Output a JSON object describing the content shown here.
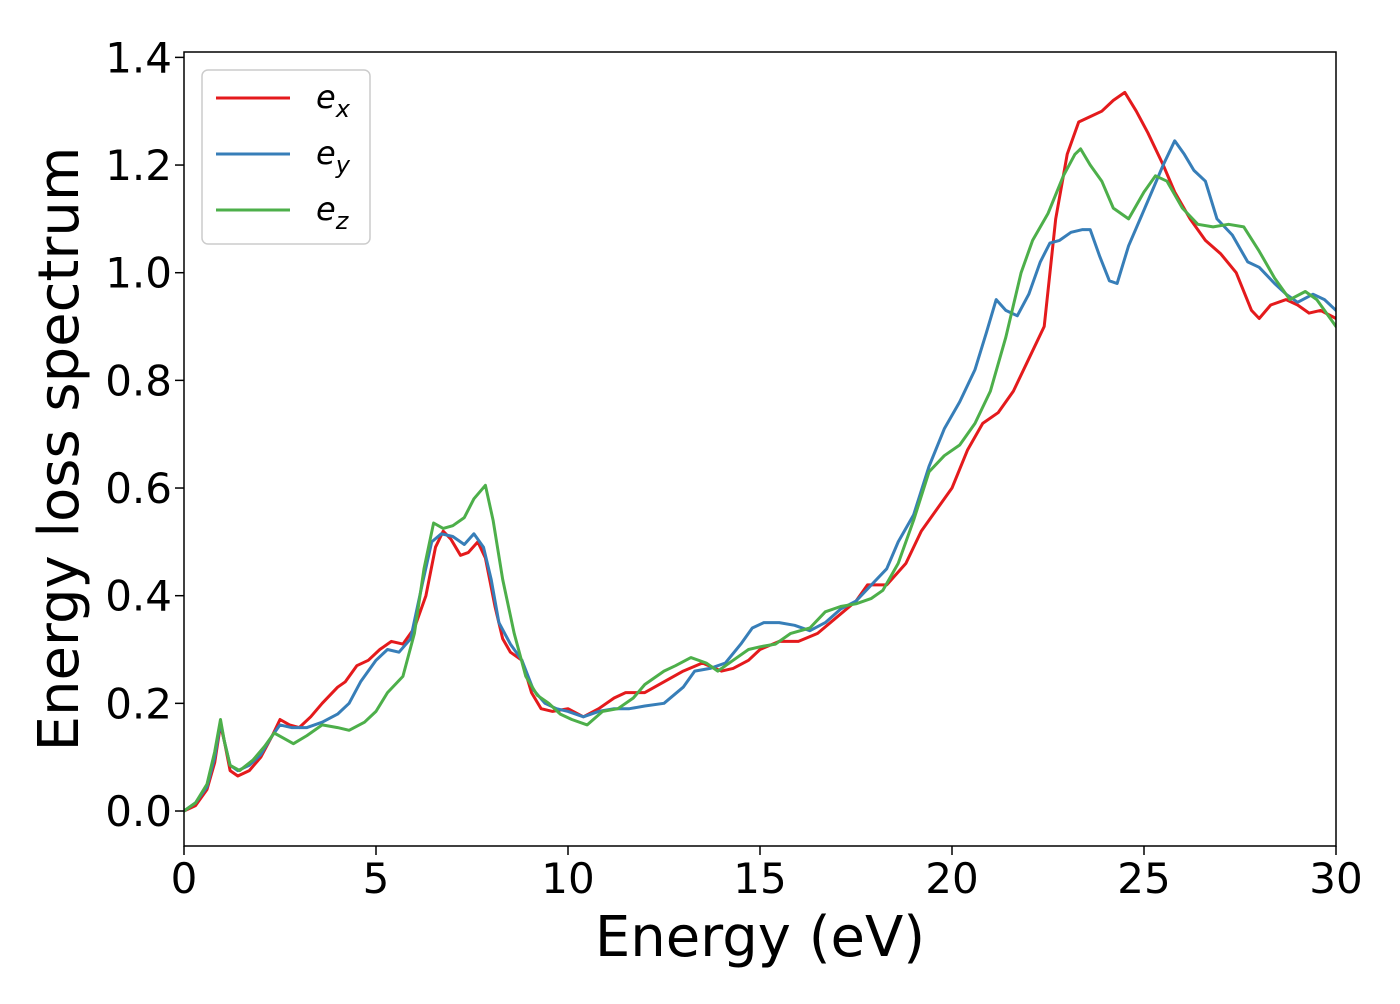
{
  "chart_data": {
    "type": "line",
    "title": "",
    "xlabel": "Energy (eV)",
    "ylabel": "Energy loss spectrum",
    "xlim": [
      0,
      30
    ],
    "ylim": [
      -0.065,
      1.41
    ],
    "xticks": [
      0,
      5,
      10,
      15,
      20,
      25,
      30
    ],
    "xtick_labels": [
      "0",
      "5",
      "10",
      "15",
      "20",
      "25",
      "30"
    ],
    "yticks": [
      0.0,
      0.2,
      0.4,
      0.6,
      0.8,
      1.0,
      1.2,
      1.4
    ],
    "ytick_labels": [
      "0.0",
      "0.2",
      "0.4",
      "0.6",
      "0.8",
      "1.0",
      "1.2",
      "1.4"
    ],
    "grid": false,
    "legend_position": "top-left",
    "series": [
      {
        "name": "e",
        "subscript": "x",
        "color": "#e41a1c",
        "points": [
          [
            0,
            0.0
          ],
          [
            0.3,
            0.01
          ],
          [
            0.6,
            0.04
          ],
          [
            0.8,
            0.09
          ],
          [
            0.95,
            0.16
          ],
          [
            1.05,
            0.13
          ],
          [
            1.2,
            0.075
          ],
          [
            1.4,
            0.065
          ],
          [
            1.7,
            0.075
          ],
          [
            2.0,
            0.1
          ],
          [
            2.3,
            0.14
          ],
          [
            2.5,
            0.17
          ],
          [
            2.75,
            0.16
          ],
          [
            3.0,
            0.155
          ],
          [
            3.3,
            0.175
          ],
          [
            3.6,
            0.2
          ],
          [
            4.0,
            0.23
          ],
          [
            4.2,
            0.24
          ],
          [
            4.5,
            0.27
          ],
          [
            4.8,
            0.28
          ],
          [
            5.1,
            0.3
          ],
          [
            5.4,
            0.315
          ],
          [
            5.7,
            0.31
          ],
          [
            6.0,
            0.34
          ],
          [
            6.3,
            0.4
          ],
          [
            6.55,
            0.49
          ],
          [
            6.75,
            0.52
          ],
          [
            6.95,
            0.505
          ],
          [
            7.2,
            0.475
          ],
          [
            7.4,
            0.48
          ],
          [
            7.65,
            0.5
          ],
          [
            7.85,
            0.47
          ],
          [
            8.1,
            0.38
          ],
          [
            8.3,
            0.32
          ],
          [
            8.5,
            0.295
          ],
          [
            8.8,
            0.28
          ],
          [
            9.05,
            0.22
          ],
          [
            9.3,
            0.19
          ],
          [
            9.6,
            0.185
          ],
          [
            10.0,
            0.19
          ],
          [
            10.4,
            0.175
          ],
          [
            10.8,
            0.19
          ],
          [
            11.2,
            0.21
          ],
          [
            11.5,
            0.22
          ],
          [
            12.0,
            0.22
          ],
          [
            12.5,
            0.24
          ],
          [
            13.0,
            0.26
          ],
          [
            13.5,
            0.275
          ],
          [
            14.0,
            0.26
          ],
          [
            14.3,
            0.265
          ],
          [
            14.7,
            0.28
          ],
          [
            15.0,
            0.3
          ],
          [
            15.5,
            0.315
          ],
          [
            16.0,
            0.315
          ],
          [
            16.5,
            0.33
          ],
          [
            17.0,
            0.36
          ],
          [
            17.5,
            0.39
          ],
          [
            17.8,
            0.42
          ],
          [
            18.0,
            0.42
          ],
          [
            18.3,
            0.42
          ],
          [
            18.8,
            0.46
          ],
          [
            19.2,
            0.52
          ],
          [
            19.6,
            0.56
          ],
          [
            20.0,
            0.6
          ],
          [
            20.4,
            0.67
          ],
          [
            20.8,
            0.72
          ],
          [
            21.2,
            0.74
          ],
          [
            21.6,
            0.78
          ],
          [
            22.0,
            0.84
          ],
          [
            22.4,
            0.9
          ],
          [
            22.7,
            1.1
          ],
          [
            23.0,
            1.22
          ],
          [
            23.3,
            1.28
          ],
          [
            23.6,
            1.29
          ],
          [
            23.9,
            1.3
          ],
          [
            24.2,
            1.32
          ],
          [
            24.5,
            1.335
          ],
          [
            24.8,
            1.3
          ],
          [
            25.1,
            1.26
          ],
          [
            25.5,
            1.2
          ],
          [
            25.8,
            1.15
          ],
          [
            26.2,
            1.1
          ],
          [
            26.6,
            1.06
          ],
          [
            27.0,
            1.035
          ],
          [
            27.4,
            1.0
          ],
          [
            27.8,
            0.93
          ],
          [
            28.0,
            0.915
          ],
          [
            28.3,
            0.94
          ],
          [
            28.7,
            0.95
          ],
          [
            29.0,
            0.94
          ],
          [
            29.3,
            0.925
          ],
          [
            29.6,
            0.93
          ],
          [
            30.0,
            0.915
          ]
        ]
      },
      {
        "name": "e",
        "subscript": "y",
        "color": "#377eb8",
        "points": [
          [
            0,
            0.0
          ],
          [
            0.3,
            0.015
          ],
          [
            0.6,
            0.045
          ],
          [
            0.8,
            0.1
          ],
          [
            0.95,
            0.165
          ],
          [
            1.05,
            0.13
          ],
          [
            1.2,
            0.085
          ],
          [
            1.4,
            0.075
          ],
          [
            1.7,
            0.085
          ],
          [
            2.0,
            0.105
          ],
          [
            2.3,
            0.14
          ],
          [
            2.5,
            0.16
          ],
          [
            2.8,
            0.155
          ],
          [
            3.2,
            0.155
          ],
          [
            3.6,
            0.165
          ],
          [
            4.0,
            0.18
          ],
          [
            4.3,
            0.2
          ],
          [
            4.6,
            0.24
          ],
          [
            5.0,
            0.28
          ],
          [
            5.3,
            0.3
          ],
          [
            5.6,
            0.295
          ],
          [
            5.9,
            0.32
          ],
          [
            6.2,
            0.42
          ],
          [
            6.45,
            0.5
          ],
          [
            6.7,
            0.515
          ],
          [
            7.0,
            0.51
          ],
          [
            7.3,
            0.495
          ],
          [
            7.55,
            0.515
          ],
          [
            7.8,
            0.49
          ],
          [
            8.0,
            0.43
          ],
          [
            8.2,
            0.35
          ],
          [
            8.5,
            0.31
          ],
          [
            8.8,
            0.28
          ],
          [
            9.1,
            0.225
          ],
          [
            9.4,
            0.2
          ],
          [
            9.7,
            0.19
          ],
          [
            10.0,
            0.185
          ],
          [
            10.4,
            0.175
          ],
          [
            10.8,
            0.185
          ],
          [
            11.2,
            0.19
          ],
          [
            11.6,
            0.19
          ],
          [
            12.0,
            0.195
          ],
          [
            12.5,
            0.2
          ],
          [
            13.0,
            0.23
          ],
          [
            13.3,
            0.26
          ],
          [
            13.7,
            0.265
          ],
          [
            14.1,
            0.275
          ],
          [
            14.5,
            0.31
          ],
          [
            14.8,
            0.34
          ],
          [
            15.1,
            0.35
          ],
          [
            15.5,
            0.35
          ],
          [
            15.9,
            0.345
          ],
          [
            16.3,
            0.335
          ],
          [
            16.7,
            0.35
          ],
          [
            17.1,
            0.375
          ],
          [
            17.5,
            0.39
          ],
          [
            17.9,
            0.42
          ],
          [
            18.3,
            0.45
          ],
          [
            18.6,
            0.5
          ],
          [
            19.0,
            0.55
          ],
          [
            19.4,
            0.64
          ],
          [
            19.8,
            0.71
          ],
          [
            20.2,
            0.76
          ],
          [
            20.6,
            0.82
          ],
          [
            20.9,
            0.89
          ],
          [
            21.15,
            0.95
          ],
          [
            21.4,
            0.93
          ],
          [
            21.7,
            0.92
          ],
          [
            22.0,
            0.96
          ],
          [
            22.3,
            1.02
          ],
          [
            22.55,
            1.055
          ],
          [
            22.8,
            1.06
          ],
          [
            23.1,
            1.075
          ],
          [
            23.4,
            1.08
          ],
          [
            23.6,
            1.08
          ],
          [
            23.85,
            1.03
          ],
          [
            24.1,
            0.985
          ],
          [
            24.3,
            0.98
          ],
          [
            24.6,
            1.05
          ],
          [
            24.9,
            1.1
          ],
          [
            25.2,
            1.15
          ],
          [
            25.5,
            1.2
          ],
          [
            25.8,
            1.245
          ],
          [
            26.05,
            1.22
          ],
          [
            26.3,
            1.19
          ],
          [
            26.6,
            1.17
          ],
          [
            26.9,
            1.1
          ],
          [
            27.3,
            1.07
          ],
          [
            27.7,
            1.02
          ],
          [
            28.0,
            1.01
          ],
          [
            28.4,
            0.98
          ],
          [
            28.7,
            0.96
          ],
          [
            29.0,
            0.945
          ],
          [
            29.4,
            0.96
          ],
          [
            29.7,
            0.95
          ],
          [
            30.0,
            0.93
          ]
        ]
      },
      {
        "name": "e",
        "subscript": "z",
        "color": "#4daf4a",
        "points": [
          [
            0,
            0.0
          ],
          [
            0.3,
            0.015
          ],
          [
            0.6,
            0.05
          ],
          [
            0.8,
            0.11
          ],
          [
            0.95,
            0.17
          ],
          [
            1.05,
            0.13
          ],
          [
            1.2,
            0.085
          ],
          [
            1.45,
            0.075
          ],
          [
            1.8,
            0.095
          ],
          [
            2.1,
            0.12
          ],
          [
            2.35,
            0.145
          ],
          [
            2.6,
            0.135
          ],
          [
            2.85,
            0.125
          ],
          [
            3.2,
            0.14
          ],
          [
            3.6,
            0.16
          ],
          [
            4.0,
            0.155
          ],
          [
            4.3,
            0.15
          ],
          [
            4.7,
            0.165
          ],
          [
            5.0,
            0.185
          ],
          [
            5.3,
            0.22
          ],
          [
            5.7,
            0.25
          ],
          [
            6.0,
            0.33
          ],
          [
            6.25,
            0.45
          ],
          [
            6.5,
            0.535
          ],
          [
            6.75,
            0.525
          ],
          [
            7.0,
            0.53
          ],
          [
            7.3,
            0.545
          ],
          [
            7.55,
            0.58
          ],
          [
            7.85,
            0.605
          ],
          [
            8.05,
            0.54
          ],
          [
            8.3,
            0.43
          ],
          [
            8.6,
            0.33
          ],
          [
            8.9,
            0.25
          ],
          [
            9.2,
            0.215
          ],
          [
            9.5,
            0.2
          ],
          [
            9.8,
            0.18
          ],
          [
            10.1,
            0.17
          ],
          [
            10.5,
            0.16
          ],
          [
            10.9,
            0.185
          ],
          [
            11.3,
            0.19
          ],
          [
            11.7,
            0.21
          ],
          [
            12.0,
            0.235
          ],
          [
            12.5,
            0.26
          ],
          [
            12.8,
            0.27
          ],
          [
            13.2,
            0.285
          ],
          [
            13.6,
            0.275
          ],
          [
            13.9,
            0.26
          ],
          [
            14.3,
            0.28
          ],
          [
            14.7,
            0.3
          ],
          [
            15.0,
            0.305
          ],
          [
            15.4,
            0.31
          ],
          [
            15.8,
            0.33
          ],
          [
            16.3,
            0.34
          ],
          [
            16.7,
            0.37
          ],
          [
            17.1,
            0.38
          ],
          [
            17.5,
            0.385
          ],
          [
            17.9,
            0.395
          ],
          [
            18.2,
            0.41
          ],
          [
            18.6,
            0.46
          ],
          [
            19.0,
            0.54
          ],
          [
            19.4,
            0.63
          ],
          [
            19.8,
            0.66
          ],
          [
            20.2,
            0.68
          ],
          [
            20.6,
            0.72
          ],
          [
            21.0,
            0.78
          ],
          [
            21.4,
            0.88
          ],
          [
            21.8,
            1.0
          ],
          [
            22.1,
            1.06
          ],
          [
            22.5,
            1.11
          ],
          [
            22.9,
            1.18
          ],
          [
            23.2,
            1.22
          ],
          [
            23.35,
            1.23
          ],
          [
            23.6,
            1.2
          ],
          [
            23.9,
            1.17
          ],
          [
            24.2,
            1.12
          ],
          [
            24.6,
            1.1
          ],
          [
            25.0,
            1.15
          ],
          [
            25.3,
            1.18
          ],
          [
            25.6,
            1.17
          ],
          [
            26.0,
            1.12
          ],
          [
            26.4,
            1.09
          ],
          [
            26.8,
            1.085
          ],
          [
            27.2,
            1.09
          ],
          [
            27.6,
            1.085
          ],
          [
            28.0,
            1.04
          ],
          [
            28.4,
            0.99
          ],
          [
            28.8,
            0.95
          ],
          [
            29.2,
            0.965
          ],
          [
            29.5,
            0.95
          ],
          [
            30.0,
            0.9
          ]
        ]
      }
    ]
  }
}
